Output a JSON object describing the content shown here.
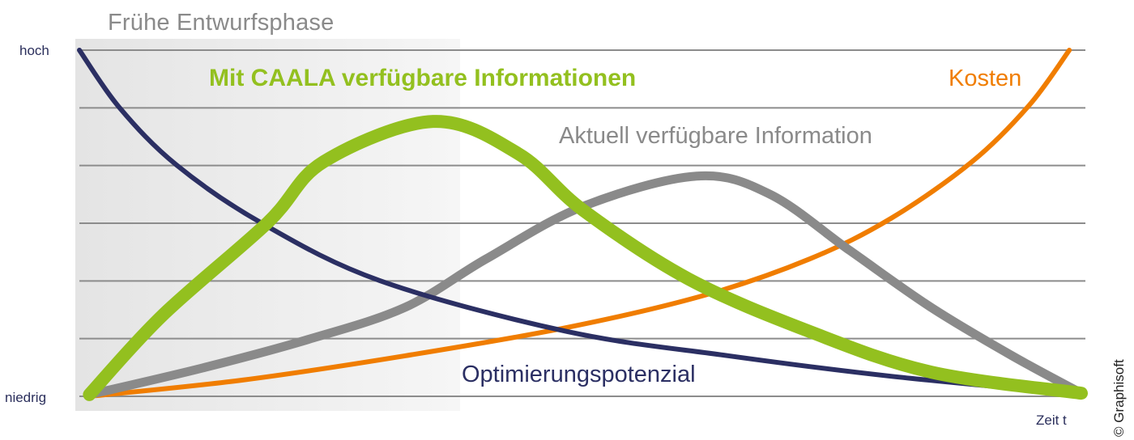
{
  "chart_data": {
    "type": "line",
    "title": "Frühe Entwurfsphase",
    "xlabel": "Zeit t",
    "ylabel": "",
    "y_tick_labels": {
      "top": "hoch",
      "bottom": "niedrig"
    },
    "ylim": [
      0,
      1
    ],
    "xlim": [
      0,
      1
    ],
    "grid": true,
    "grid_lines": 7,
    "shaded_region": {
      "label": "Frühe Entwurfsphase",
      "x_start": 0.0,
      "x_end": 0.38
    },
    "legend_position": "inline labels",
    "series": [
      {
        "name": "Optimierungspotenzial",
        "color": "#2b2f63",
        "width": 6,
        "x": [
          0.0,
          0.04,
          0.097,
          0.181,
          0.3,
          0.487,
          0.648,
          0.81,
          1.0
        ],
        "y": [
          1.0,
          0.834,
          0.668,
          0.502,
          0.334,
          0.187,
          0.117,
          0.058,
          0.005
        ]
      },
      {
        "name": "Mit CAALA verfügbare Informationen",
        "color": "#93c01f",
        "width": 16,
        "x": [
          0.01,
          0.083,
          0.188,
          0.244,
          0.353,
          0.438,
          0.503,
          0.608,
          0.729,
          0.85,
          1.0
        ],
        "y": [
          0.005,
          0.234,
          0.502,
          0.678,
          0.794,
          0.701,
          0.537,
          0.339,
          0.187,
          0.07,
          0.009
        ]
      },
      {
        "name": "Aktuell verfügbare Information",
        "color": "#8a8a8a",
        "width": 11,
        "x": [
          0.01,
          0.123,
          0.228,
          0.325,
          0.406,
          0.503,
          0.616,
          0.689,
          0.769,
          0.85,
          0.931,
          1.0
        ],
        "y": [
          0.005,
          0.082,
          0.164,
          0.257,
          0.397,
          0.549,
          0.636,
          0.584,
          0.421,
          0.257,
          0.117,
          0.009
        ]
      },
      {
        "name": "Kosten",
        "color": "#f07d00",
        "width": 6,
        "x": [
          0.01,
          0.163,
          0.325,
          0.487,
          0.624,
          0.729,
          0.81,
          0.891,
          0.948,
          0.988
        ],
        "y": [
          0.0,
          0.047,
          0.117,
          0.199,
          0.292,
          0.397,
          0.514,
          0.678,
          0.841,
          1.0
        ]
      }
    ]
  },
  "labels": {
    "phase_title": "Frühe Entwurfsphase",
    "y_high": "hoch",
    "y_low": "niedrig",
    "x_axis": "Zeit t",
    "caala": "Mit CAALA verfügbare Informationen",
    "aktuell": "Aktuell verfügbare Information",
    "kosten": "Kosten",
    "optimierung": "Optimierungspotenzial",
    "copyright": "© Graphisoft"
  },
  "colors": {
    "navy": "#2b2f63",
    "green": "#93c01f",
    "gray": "#8a8a8a",
    "orange": "#f07d00",
    "gridline": "#8c8c8c",
    "shade": "#e6e6e6"
  }
}
